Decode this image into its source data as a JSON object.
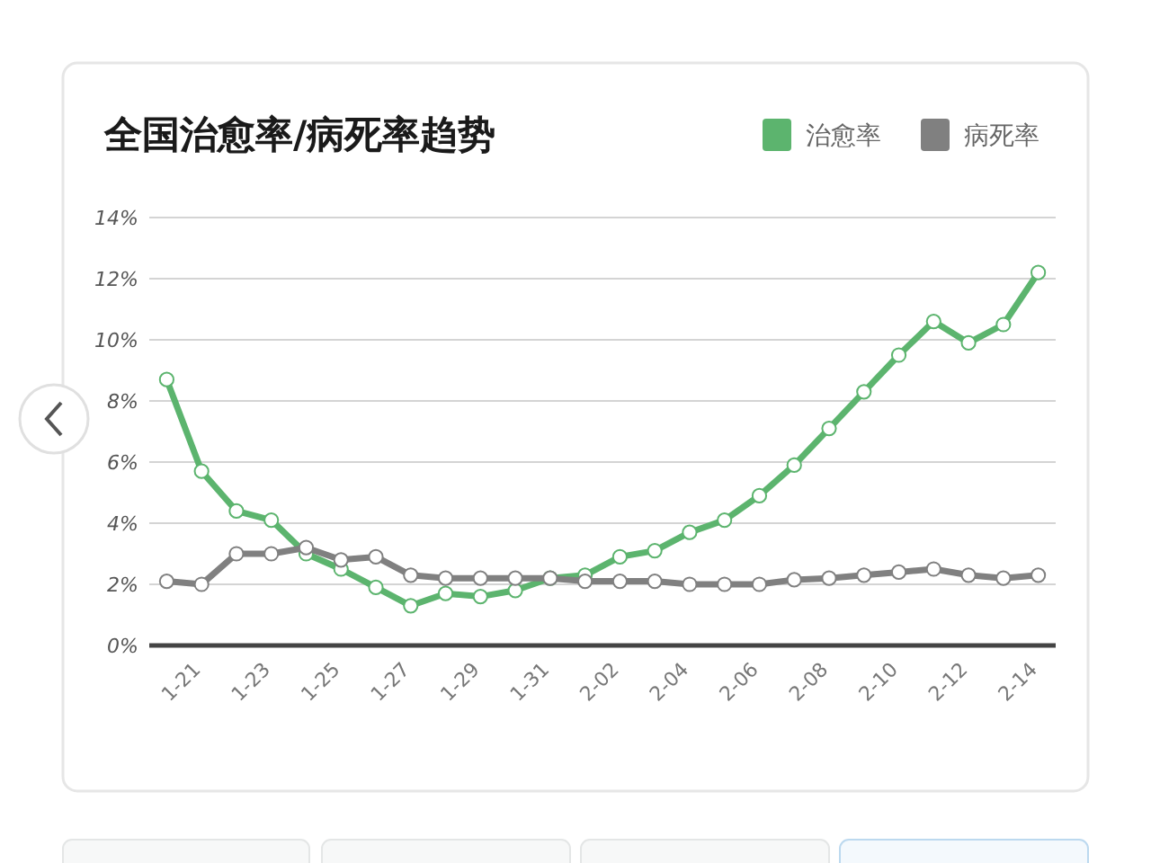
{
  "chart_data": {
    "type": "line",
    "title": "全国治愈率/病死率趋势",
    "categories": [
      null,
      "1-21",
      null,
      "1-23",
      null,
      "1-25",
      null,
      "1-27",
      null,
      "1-29",
      null,
      "1-31",
      null,
      "2-02",
      null,
      "2-04",
      null,
      "2-06",
      null,
      "2-08",
      null,
      "2-10",
      null,
      "2-12",
      null,
      "2-14"
    ],
    "series": [
      {
        "name": "治愈率",
        "color": "#5cb46e",
        "values": [
          8.7,
          5.7,
          4.4,
          4.1,
          3.0,
          2.5,
          1.9,
          1.3,
          1.7,
          1.6,
          1.8,
          2.2,
          2.3,
          2.9,
          3.1,
          3.7,
          4.1,
          4.9,
          5.9,
          7.1,
          8.3,
          9.5,
          10.6,
          9.9,
          10.5,
          12.2
        ]
      },
      {
        "name": "病死率",
        "color": "#808080",
        "values": [
          2.1,
          2.0,
          3.0,
          3.0,
          3.2,
          2.8,
          2.9,
          2.3,
          2.2,
          2.2,
          2.2,
          2.2,
          2.1,
          2.1,
          2.1,
          2.0,
          2.0,
          2.0,
          2.15,
          2.2,
          2.3,
          2.4,
          2.5,
          2.3,
          2.2,
          2.3
        ]
      }
    ],
    "ylim": [
      0,
      14
    ],
    "yticks": [
      {
        "value": 0,
        "label": "0%"
      },
      {
        "value": 2,
        "label": "2%"
      },
      {
        "value": 4,
        "label": "4%"
      },
      {
        "value": 6,
        "label": "6%"
      },
      {
        "value": 8,
        "label": "8%"
      },
      {
        "value": 10,
        "label": "10%"
      },
      {
        "value": 12,
        "label": "12%"
      },
      {
        "value": 14,
        "label": "14%"
      }
    ],
    "grid": "y",
    "legend": "top right",
    "marker": "circle",
    "line_style": "solid"
  }
}
